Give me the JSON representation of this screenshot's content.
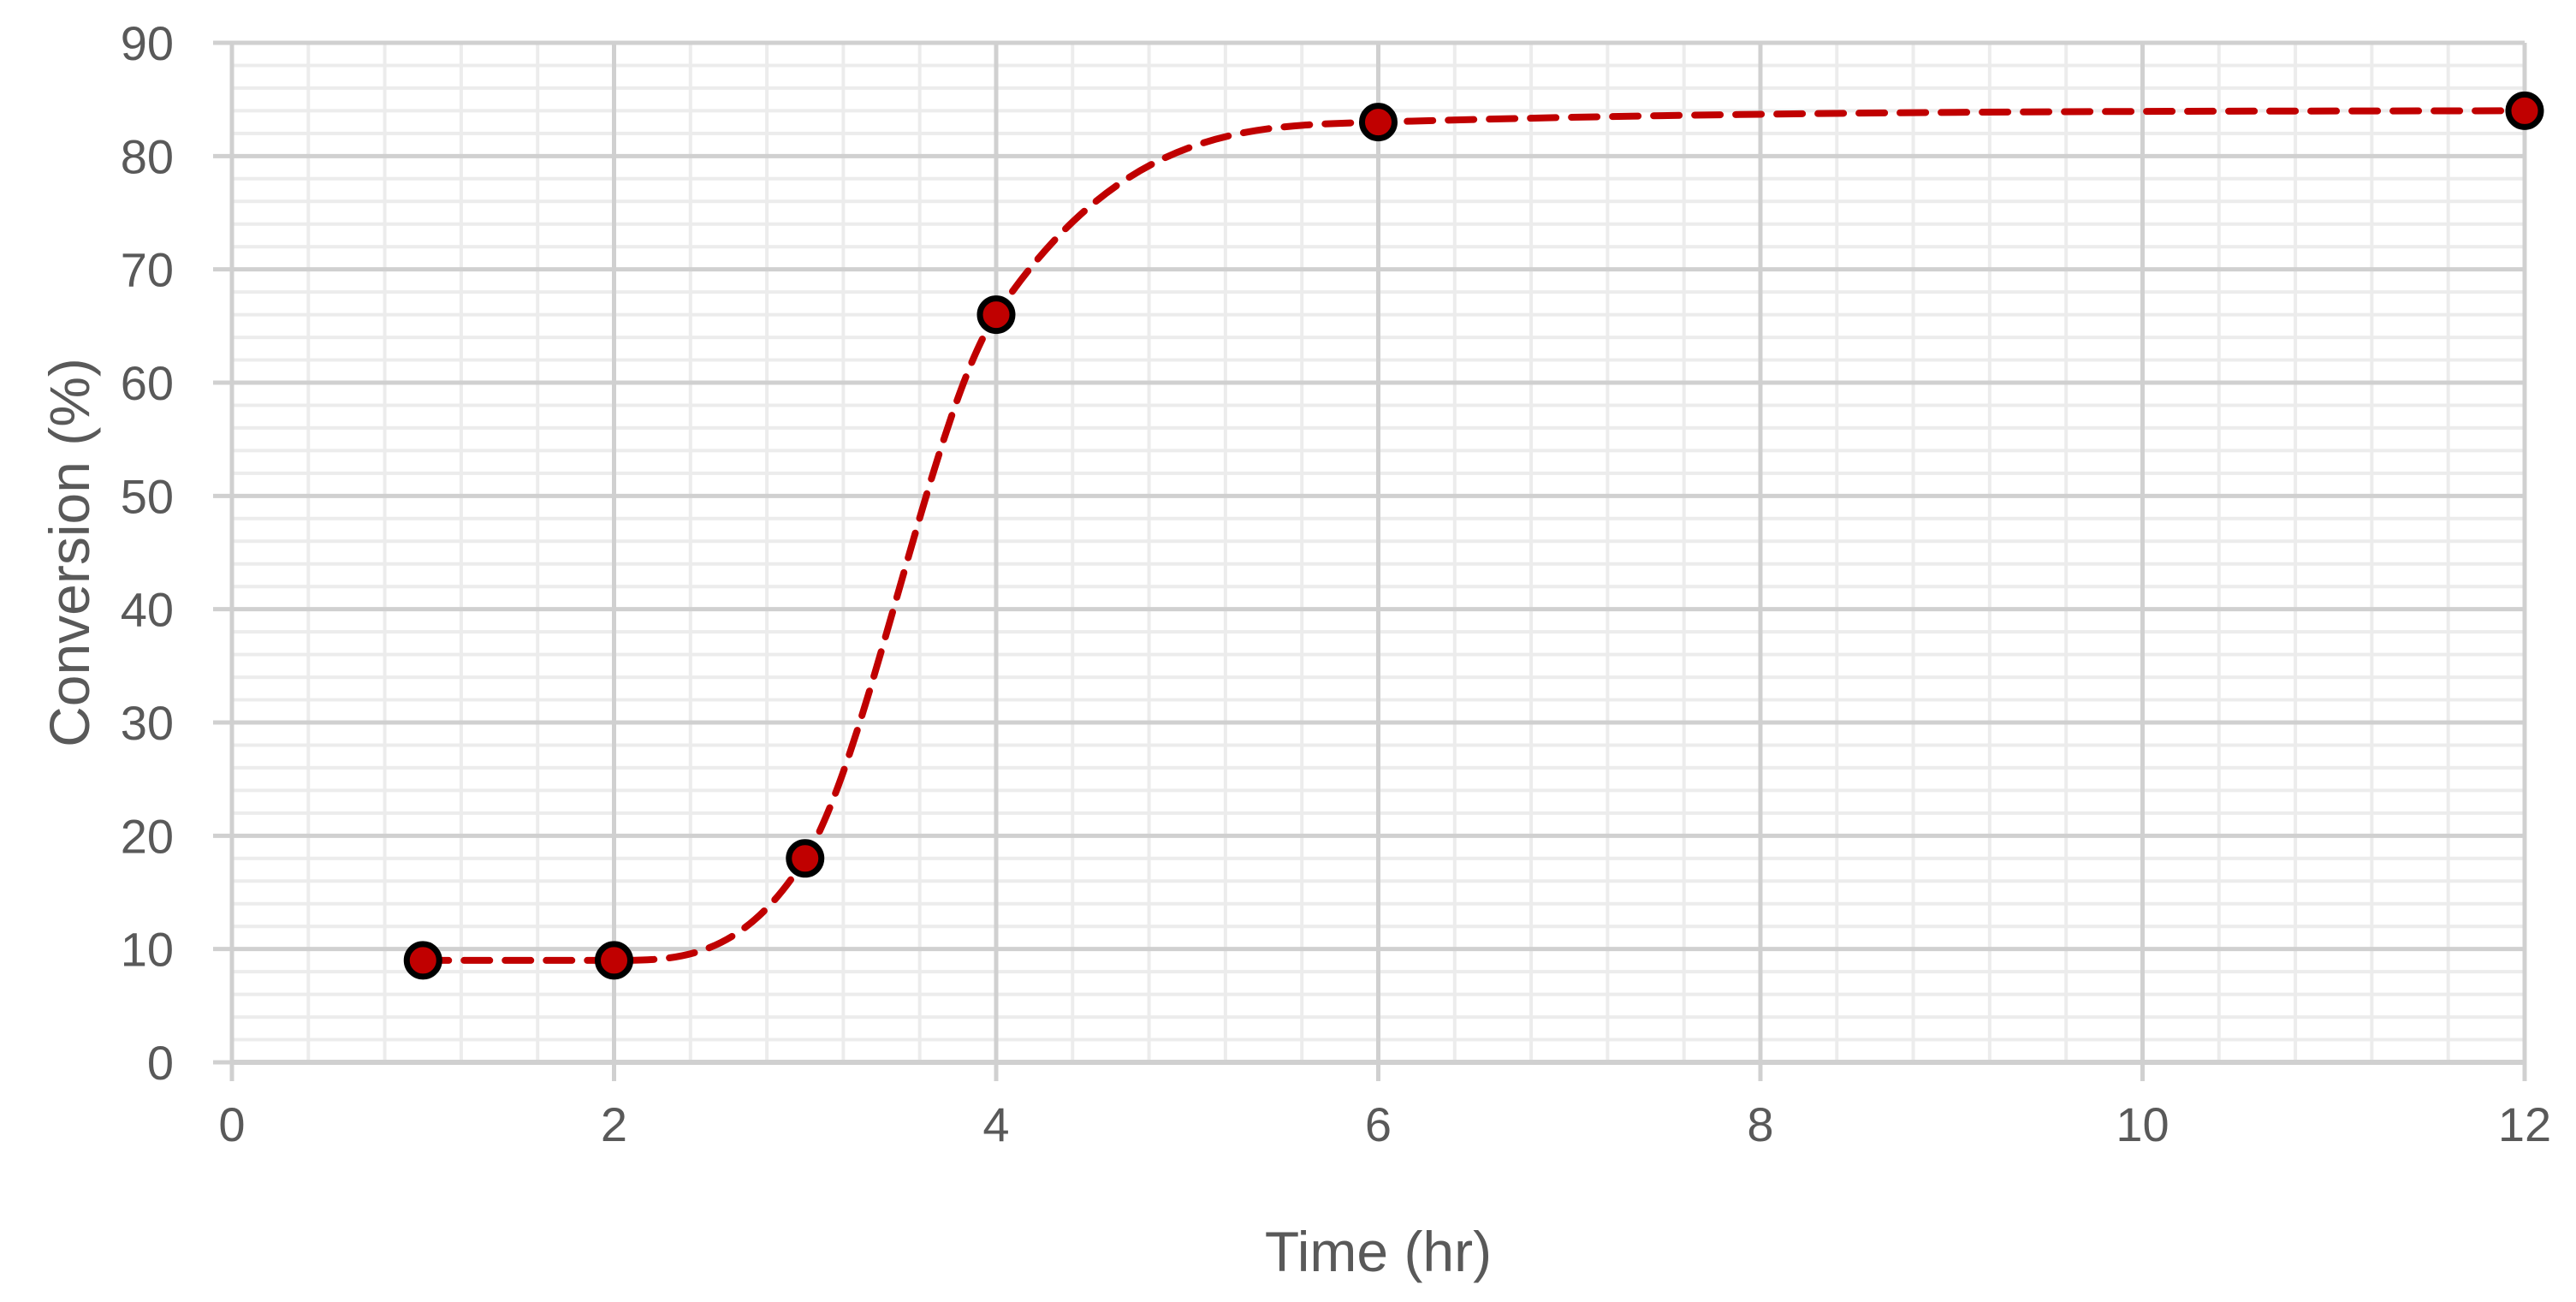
{
  "chart_data": {
    "type": "scatter",
    "title": "",
    "xlabel": "Time (hr)",
    "ylabel": "Conversion (%)",
    "xlim": [
      0,
      12
    ],
    "ylim": [
      0,
      90
    ],
    "x_ticks": [
      0,
      2,
      4,
      6,
      8,
      10,
      12
    ],
    "y_ticks": [
      0,
      10,
      20,
      30,
      40,
      50,
      60,
      70,
      80,
      90
    ],
    "grid": {
      "major": true,
      "minor": true
    },
    "series": [
      {
        "x": [
          1,
          2,
          3,
          4,
          6,
          12
        ],
        "y": [
          9,
          9,
          18,
          66,
          83,
          84
        ],
        "marker": "circle",
        "marker_color": "#c00000",
        "marker_edge_color": "#000000",
        "line_style": "dashed smooth",
        "line_color": "#c00000"
      }
    ],
    "colors": {
      "major_grid": "#d0d0d0",
      "minor_grid": "#ececec",
      "text": "#595959"
    }
  }
}
